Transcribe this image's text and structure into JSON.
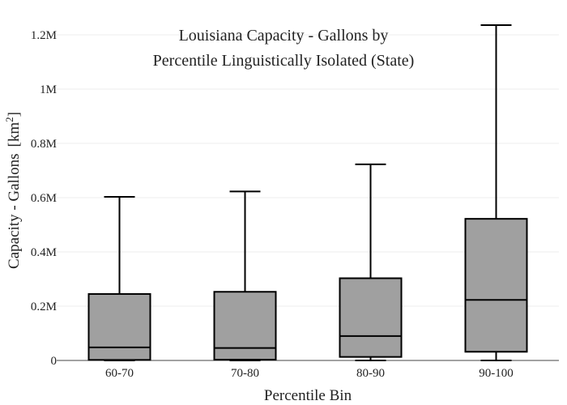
{
  "chart_data": {
    "type": "box",
    "title_lines": [
      "Louisiana Capacity - Gallons by",
      "Percentile Linguistically Isolated (State)"
    ],
    "xlabel": "Percentile Bin",
    "ylabel": "Capacity - Gallons",
    "ylabel_unit_base": "[km",
    "ylabel_unit_sup": "2",
    "ylabel_unit_end": "]",
    "ylim": [
      0,
      1200000.0
    ],
    "yticks": [
      {
        "value": 0,
        "label": "0"
      },
      {
        "value": 200000,
        "label": "0.2M"
      },
      {
        "value": 400000,
        "label": "0.4M"
      },
      {
        "value": 600000,
        "label": "0.6M"
      },
      {
        "value": 800000,
        "label": "0.8M"
      },
      {
        "value": 1000000,
        "label": "1M"
      },
      {
        "value": 1200000,
        "label": "1.2M"
      }
    ],
    "grid": true,
    "box_color": "#a0a0a0",
    "line_color": "#000000",
    "categories": [
      "60-70",
      "70-80",
      "80-90",
      "90-100"
    ],
    "boxes": [
      {
        "category": "60-70",
        "min": 0,
        "q1": 2000,
        "median": 48000,
        "q3": 245000,
        "max": 603000
      },
      {
        "category": "70-80",
        "min": 0,
        "q1": 3000,
        "median": 46000,
        "q3": 253000,
        "max": 623000
      },
      {
        "category": "80-90",
        "min": 0,
        "q1": 13000,
        "median": 90000,
        "q3": 303000,
        "max": 723000
      },
      {
        "category": "90-100",
        "min": 0,
        "q1": 32000,
        "median": 223000,
        "q3": 522000,
        "max": 1236000
      }
    ]
  }
}
